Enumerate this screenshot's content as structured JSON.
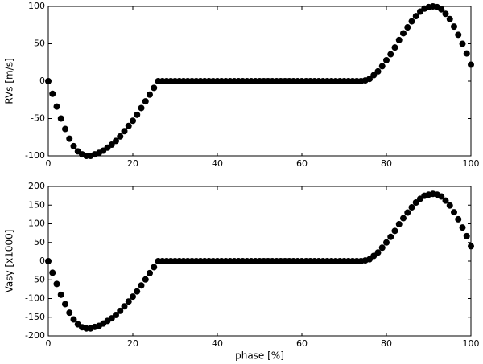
{
  "chart_data": [
    {
      "type": "scatter",
      "ylabel": "RVs [m/s]",
      "color": "#000000",
      "x": [
        0,
        1,
        2,
        3,
        4,
        5,
        6,
        7,
        8,
        9,
        10,
        11,
        12,
        13,
        14,
        15,
        16,
        17,
        18,
        19,
        20,
        21,
        22,
        23,
        24,
        25,
        26,
        27,
        28,
        29,
        30,
        31,
        32,
        33,
        34,
        35,
        36,
        37,
        38,
        39,
        40,
        41,
        42,
        43,
        44,
        45,
        46,
        47,
        48,
        49,
        50,
        51,
        52,
        53,
        54,
        55,
        56,
        57,
        58,
        59,
        60,
        61,
        62,
        63,
        64,
        65,
        66,
        67,
        68,
        69,
        70,
        71,
        72,
        73,
        74,
        75,
        76,
        77,
        78,
        79,
        80,
        81,
        82,
        83,
        84,
        85,
        86,
        87,
        88,
        89,
        90,
        91,
        92,
        93,
        94,
        95,
        96,
        97,
        98,
        99,
        100
      ],
      "values": [
        0,
        -17,
        -34,
        -50,
        -64,
        -77,
        -87,
        -94,
        -98,
        -100,
        -100,
        -98,
        -96,
        -93,
        -89,
        -85,
        -80,
        -74,
        -67,
        -60,
        -53,
        -45,
        -36,
        -27,
        -18,
        -9,
        0,
        0,
        0,
        0,
        0,
        0,
        0,
        0,
        0,
        0,
        0,
        0,
        0,
        0,
        0,
        0,
        0,
        0,
        0,
        0,
        0,
        0,
        0,
        0,
        0,
        0,
        0,
        0,
        0,
        0,
        0,
        0,
        0,
        0,
        0,
        0,
        0,
        0,
        0,
        0,
        0,
        0,
        0,
        0,
        0,
        0,
        0,
        0,
        0,
        1,
        3,
        8,
        13,
        20,
        28,
        36,
        45,
        55,
        64,
        72,
        80,
        87,
        93,
        97,
        99,
        100,
        99,
        96,
        90,
        83,
        73,
        62,
        50,
        37,
        22
      ],
      "xlim": [
        0,
        100
      ],
      "xticks": [
        0,
        20,
        40,
        60,
        80,
        100
      ],
      "ylim": [
        -100,
        100
      ],
      "yticks": [
        -100,
        -50,
        0,
        50,
        100
      ]
    },
    {
      "type": "scatter",
      "ylabel": "Vasy [x1000]",
      "xlabel": "phase [%]",
      "color": "#000000",
      "x": [
        0,
        1,
        2,
        3,
        4,
        5,
        6,
        7,
        8,
        9,
        10,
        11,
        12,
        13,
        14,
        15,
        16,
        17,
        18,
        19,
        20,
        21,
        22,
        23,
        24,
        25,
        26,
        27,
        28,
        29,
        30,
        31,
        32,
        33,
        34,
        35,
        36,
        37,
        38,
        39,
        40,
        41,
        42,
        43,
        44,
        45,
        46,
        47,
        48,
        49,
        50,
        51,
        52,
        53,
        54,
        55,
        56,
        57,
        58,
        59,
        60,
        61,
        62,
        63,
        64,
        65,
        66,
        67,
        68,
        69,
        70,
        71,
        72,
        73,
        74,
        75,
        76,
        77,
        78,
        79,
        80,
        81,
        82,
        83,
        84,
        85,
        86,
        87,
        88,
        89,
        90,
        91,
        92,
        93,
        94,
        95,
        96,
        97,
        98,
        99,
        100
      ],
      "values": [
        0,
        -31,
        -61,
        -90,
        -115,
        -138,
        -156,
        -169,
        -177,
        -180,
        -180,
        -176,
        -173,
        -167,
        -160,
        -153,
        -144,
        -133,
        -121,
        -108,
        -95,
        -81,
        -65,
        -49,
        -32,
        -16,
        0,
        0,
        0,
        0,
        0,
        0,
        0,
        0,
        0,
        0,
        0,
        0,
        0,
        0,
        0,
        0,
        0,
        0,
        0,
        0,
        0,
        0,
        0,
        0,
        0,
        0,
        0,
        0,
        0,
        0,
        0,
        0,
        0,
        0,
        0,
        0,
        0,
        0,
        0,
        0,
        0,
        0,
        0,
        0,
        0,
        0,
        0,
        0,
        0,
        2,
        5,
        14,
        23,
        36,
        50,
        65,
        81,
        99,
        115,
        130,
        144,
        157,
        167,
        175,
        178,
        180,
        178,
        173,
        162,
        149,
        131,
        112,
        90,
        67,
        40
      ],
      "xlim": [
        0,
        100
      ],
      "xticks": [
        0,
        20,
        40,
        60,
        80,
        100
      ],
      "ylim": [
        -200,
        200
      ],
      "yticks": [
        -200,
        -150,
        -100,
        -50,
        0,
        50,
        100,
        150,
        200
      ]
    }
  ]
}
